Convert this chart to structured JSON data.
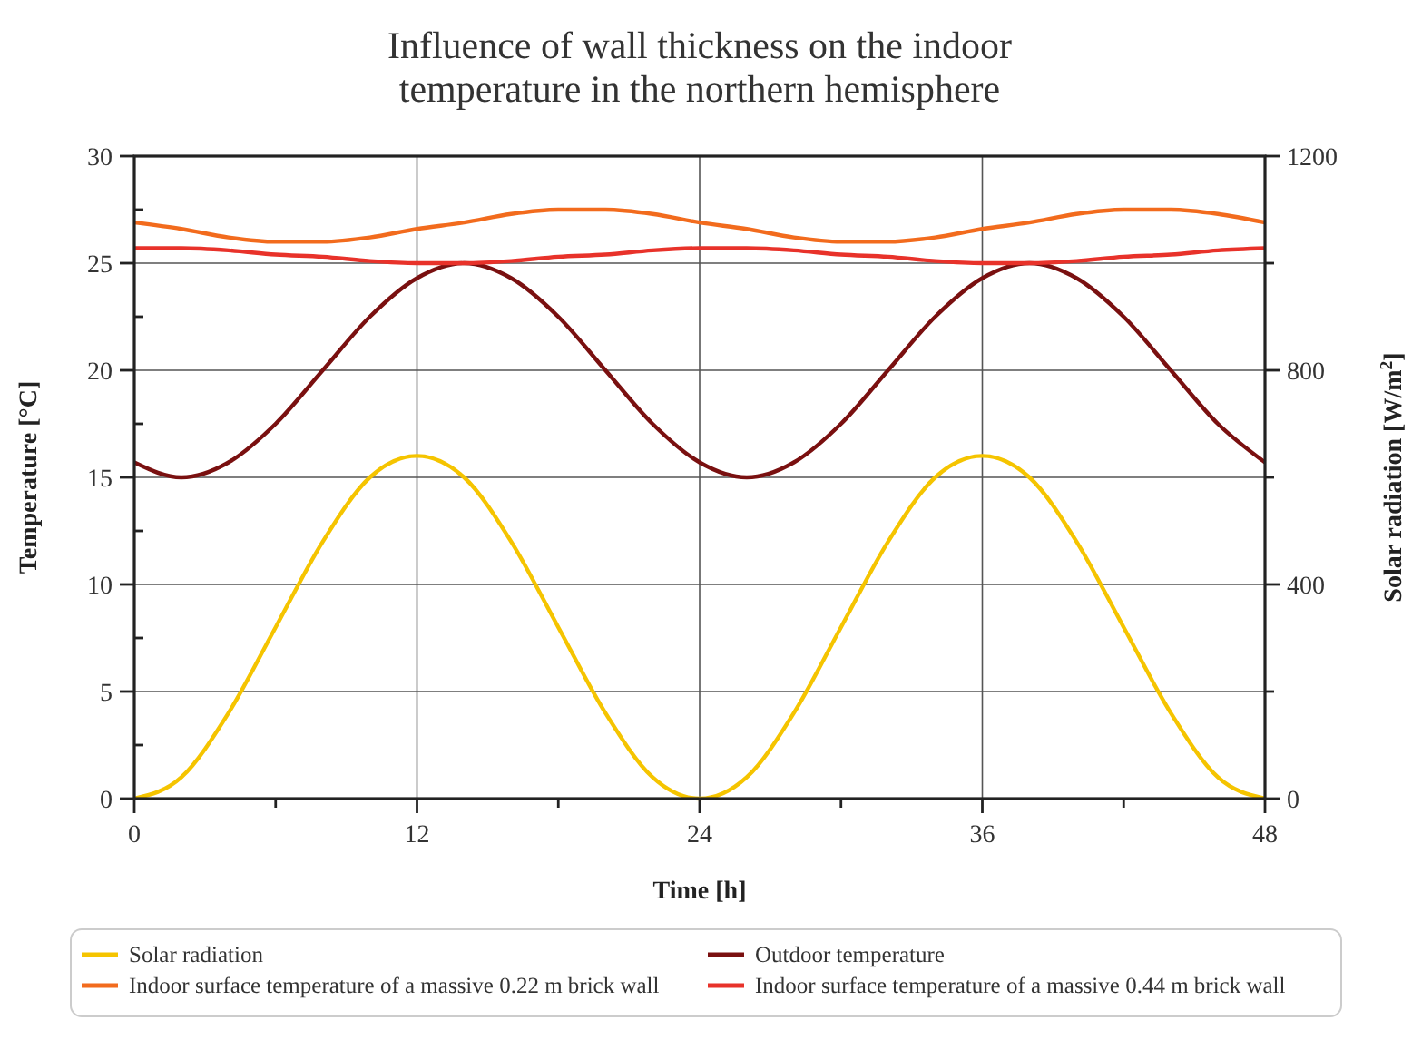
{
  "chart_data": {
    "type": "line",
    "title": "Influence of wall thickness on the indoor temperature in the northern hemisphere",
    "xlabel": "Time [h]",
    "ylabel": "Temperature [°C]",
    "y2label": "Solar radiation [W/m$^{2}$]",
    "x": [
      0,
      2,
      4,
      6,
      8,
      10,
      12,
      14,
      16,
      18,
      20,
      22,
      24,
      26,
      28,
      30,
      32,
      34,
      36,
      38,
      40,
      42,
      44,
      46,
      48
    ],
    "series": [
      {
        "name": "Solar radiation",
        "color": "#f5c400",
        "axis": "y2",
        "values": [
          0,
          40,
          160,
          320,
          480,
          600,
          640,
          600,
          480,
          320,
          160,
          40,
          0,
          40,
          160,
          320,
          480,
          600,
          640,
          600,
          480,
          320,
          160,
          40,
          0
        ]
      },
      {
        "name": "Outdoor temperature",
        "color": "#7a1010",
        "values": [
          15.7,
          15,
          15.7,
          17.5,
          20,
          22.5,
          24.3,
          25,
          24.3,
          22.5,
          20,
          17.5,
          15.7,
          15,
          15.7,
          17.5,
          20,
          22.5,
          24.3,
          25,
          24.3,
          22.5,
          20,
          17.5,
          15.7
        ]
      },
      {
        "name": "Indoor surface temperature of a massive 0.22 m brick wall",
        "color": "#f26b1d",
        "values": [
          26.9,
          26.6,
          26.2,
          26,
          26,
          26.2,
          26.6,
          26.9,
          27.3,
          27.5,
          27.5,
          27.3,
          26.9,
          26.6,
          26.2,
          26,
          26,
          26.2,
          26.6,
          26.9,
          27.3,
          27.5,
          27.5,
          27.3,
          26.9
        ]
      },
      {
        "name": "Indoor surface temperature of a massive 0.44 m brick wall",
        "color": "#e8322a",
        "values": [
          25.7,
          25.7,
          25.6,
          25.4,
          25.3,
          25.1,
          25,
          25,
          25.1,
          25.3,
          25.4,
          25.6,
          25.7,
          25.7,
          25.6,
          25.4,
          25.3,
          25.1,
          25,
          25,
          25.1,
          25.3,
          25.4,
          25.6,
          25.7
        ]
      }
    ],
    "xlim": [
      0,
      48
    ],
    "xticks": [
      0,
      {
        "value": 6,
        "label": null
      },
      12,
      {
        "value": 18,
        "label": null
      },
      24,
      {
        "value": 30,
        "label": null
      },
      36,
      {
        "value": 42,
        "label": null
      },
      48
    ],
    "ylim": [
      0,
      30
    ],
    "yticks": [
      0,
      {
        "value": 2.5,
        "label": null
      },
      5,
      {
        "value": 7.5,
        "label": null
      },
      10,
      {
        "value": 12.5,
        "label": null
      },
      15,
      {
        "value": 17.5,
        "label": null
      },
      20,
      {
        "value": 22.5,
        "label": null
      },
      25,
      {
        "value": 27.5,
        "label": null
      },
      30
    ],
    "y2lim": [
      0,
      1200
    ],
    "y2ticks": [
      0,
      {
        "value": 200,
        "label": null
      },
      400,
      {
        "value": 600,
        "label": null
      },
      800,
      {
        "value": 1000,
        "label": null
      },
      1200
    ],
    "grid": true,
    "legend": "bottom",
    "marker": "none",
    "line_style": "solid"
  }
}
